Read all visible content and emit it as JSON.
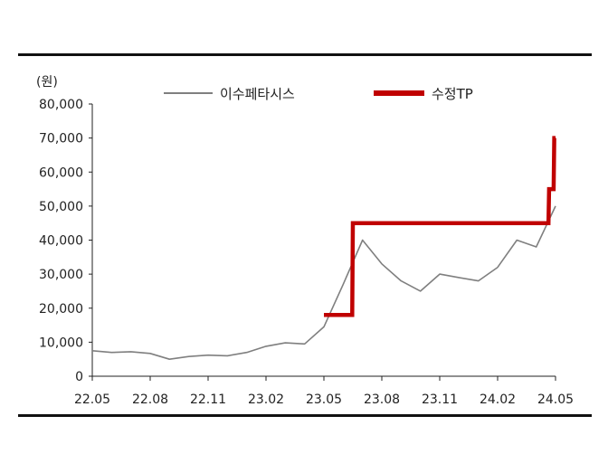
{
  "chart_data": {
    "type": "line",
    "unit_label": "(원)",
    "ylim": [
      0,
      80000
    ],
    "yticks": [
      "80,000",
      "70,000",
      "60,000",
      "50,000",
      "40,000",
      "30,000",
      "20,000",
      "10,000",
      "0"
    ],
    "ytick_values": [
      80000,
      70000,
      60000,
      50000,
      40000,
      30000,
      20000,
      10000,
      0
    ],
    "xticks": [
      "22.05",
      "22.08",
      "22.11",
      "23.02",
      "23.05",
      "23.08",
      "23.11",
      "24.02",
      "24.05"
    ],
    "xlim": [
      "22.05",
      "24.05"
    ],
    "grid": false,
    "legend_position": "top",
    "series": [
      {
        "name": "이수페타시스",
        "color": "#7f7f7f",
        "x": [
          "22.05",
          "22.06",
          "22.07",
          "22.08",
          "22.09",
          "22.10",
          "22.11",
          "22.12",
          "23.01",
          "23.02",
          "23.03",
          "23.04",
          "23.05",
          "23.06",
          "23.07",
          "23.08",
          "23.09",
          "23.10",
          "23.11",
          "23.12",
          "24.01",
          "24.02",
          "24.03",
          "24.04",
          "24.05"
        ],
        "values": [
          7500,
          7000,
          7200,
          6700,
          5000,
          5800,
          6200,
          6000,
          7000,
          8800,
          9800,
          9500,
          14500,
          27000,
          40000,
          33000,
          28000,
          25000,
          30000,
          29000,
          28000,
          32000,
          40000,
          38000,
          50000
        ]
      },
      {
        "name": "수정TP",
        "color": "#c00000",
        "step": true,
        "x": [
          "23.05",
          "23.06.15",
          "23.06.16",
          "24.04.20",
          "24.04.21",
          "24.04.28",
          "24.04.29",
          "24.05"
        ],
        "values": [
          18000,
          18000,
          45000,
          45000,
          55000,
          55000,
          70000,
          70000
        ]
      }
    ]
  }
}
